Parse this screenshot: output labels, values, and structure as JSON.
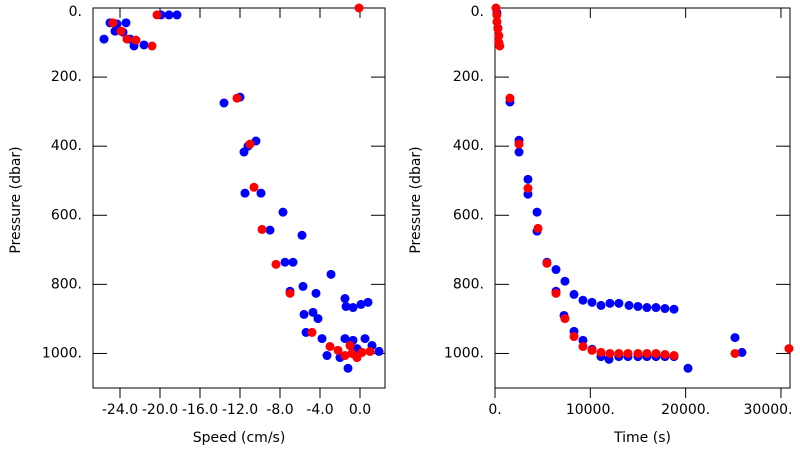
{
  "chart_data": [
    {
      "type": "scatter",
      "x_label": "Speed (cm/s)",
      "y_label": "Pressure (dbar)",
      "xlim": [
        -26.7,
        2.5
      ],
      "ylim": [
        0,
        1100
      ],
      "y_inverted": true,
      "xticks": [
        {
          "value": -24,
          "label": "-24.0"
        },
        {
          "value": -20,
          "label": "-20.0"
        },
        {
          "value": -16,
          "label": "-16.0"
        },
        {
          "value": -12,
          "label": "-12.0"
        },
        {
          "value": -8,
          "label": "-8.0"
        },
        {
          "value": -4,
          "label": "-4.0"
        },
        {
          "value": 0,
          "label": "0.0"
        }
      ],
      "yticks": [
        {
          "value": 0,
          "label": "0."
        },
        {
          "value": 200,
          "label": "200."
        },
        {
          "value": 400,
          "label": "400."
        },
        {
          "value": 600,
          "label": "600."
        },
        {
          "value": 800,
          "label": "800."
        },
        {
          "value": 1000,
          "label": "1000."
        }
      ],
      "series": [
        {
          "color": "#0000ff",
          "x": [
            -25.6,
            -25.0,
            -24.3,
            -23.4,
            -24.5,
            -23.7,
            -23.0,
            -22.6,
            -21.6,
            -19.9,
            -19.1,
            -18.3,
            -13.6,
            -12.0,
            -11.6,
            -11.2,
            -10.4,
            -11.5,
            -9.9,
            -9.0,
            -7.7,
            -5.8,
            -7.5,
            -6.7,
            -7.0,
            -5.7,
            -4.4,
            -2.9,
            -5.6,
            -4.7,
            -4.2,
            -5.4,
            -3.8,
            -3.3,
            -1.5,
            -1.4,
            -0.7,
            0.1,
            0.8,
            -1.5,
            -0.7,
            0.5,
            1.2,
            -0.3,
            -1.2,
            -2.0,
            1.9
          ],
          "values": [
            90,
            43,
            46,
            43,
            67,
            70,
            90,
            110,
            107,
            20,
            20,
            20,
            275,
            258,
            417,
            400,
            385,
            536,
            536,
            643,
            591,
            658,
            736,
            736,
            820,
            806,
            826,
            771,
            887,
            881,
            899,
            939,
            957,
            1006,
            841,
            864,
            867,
            858,
            852,
            957,
            962,
            957,
            977,
            986,
            1043,
            1012,
            994
          ]
        },
        {
          "color": "#ff0000",
          "x": [
            -24.7,
            -23.9,
            -23.3,
            -22.4,
            -20.8,
            -20.3,
            -0.1,
            -12.3,
            -11.0,
            -10.6,
            -9.8,
            -8.4,
            -7.0,
            -4.8,
            -3.0,
            -2.2,
            -1.5,
            -0.8,
            -0.3,
            0.2,
            1.0,
            -1.0
          ],
          "values": [
            43,
            67,
            90,
            93,
            110,
            20,
            0,
            261,
            394,
            519,
            641,
            742,
            826,
            939,
            980,
            991,
            1006,
            1000,
            1012,
            997,
            994,
            977
          ]
        }
      ]
    },
    {
      "type": "scatter",
      "x_label": "Time (s)",
      "y_label": "Pressure (dbar)",
      "xlim": [
        0,
        30950
      ],
      "ylim": [
        0,
        1100
      ],
      "y_inverted": true,
      "xticks": [
        {
          "value": 0,
          "label": "0."
        },
        {
          "value": 10000,
          "label": "10000."
        },
        {
          "value": 20000,
          "label": "20000."
        },
        {
          "value": 30000,
          "label": "30000."
        }
      ],
      "yticks": [
        {
          "value": 0,
          "label": "0."
        },
        {
          "value": 200,
          "label": "200."
        },
        {
          "value": 400,
          "label": "400."
        },
        {
          "value": 600,
          "label": "600."
        },
        {
          "value": 800,
          "label": "800."
        },
        {
          "value": 1000,
          "label": "1000."
        }
      ],
      "series": [
        {
          "color": "#0000ff",
          "x": [
            200,
            300,
            400,
            1570,
            2520,
            2520,
            3460,
            3460,
            4410,
            4410,
            5450,
            6400,
            6400,
            7340,
            7240,
            8290,
            8290,
            9230,
            9230,
            10180,
            11120,
            12060,
            13000,
            14060,
            15000,
            15940,
            16890,
            17830,
            18780,
            10180,
            11120,
            11960,
            12990,
            13950,
            15000,
            15940,
            16890,
            17830,
            18780,
            20250,
            25180,
            25910
          ],
          "values": [
            14,
            58,
            101,
            272,
            383,
            417,
            496,
            539,
            591,
            646,
            736,
            757,
            820,
            791,
            890,
            829,
            936,
            846,
            962,
            852,
            861,
            855,
            855,
            861,
            864,
            867,
            867,
            870,
            872,
            988,
            1009,
            1017,
            1009,
            1009,
            1009,
            1009,
            1009,
            1009,
            1009,
            1043,
            954,
            997
          ]
        },
        {
          "color": "#ff0000",
          "x": [
            100,
            200,
            200,
            300,
            400,
            400,
            500,
            1570,
            2520,
            3460,
            4510,
            5450,
            6400,
            7340,
            8290,
            9230,
            10180,
            11120,
            12060,
            13000,
            13950,
            15000,
            15940,
            16890,
            17830,
            18780,
            25180,
            30840
          ],
          "values": [
            0,
            20,
            40,
            60,
            80,
            100,
            110,
            261,
            394,
            522,
            638,
            739,
            826,
            899,
            951,
            980,
            991,
            997,
            1000,
            1000,
            1000,
            1000,
            1000,
            1000,
            1003,
            1006,
            1000,
            986
          ]
        }
      ]
    }
  ]
}
